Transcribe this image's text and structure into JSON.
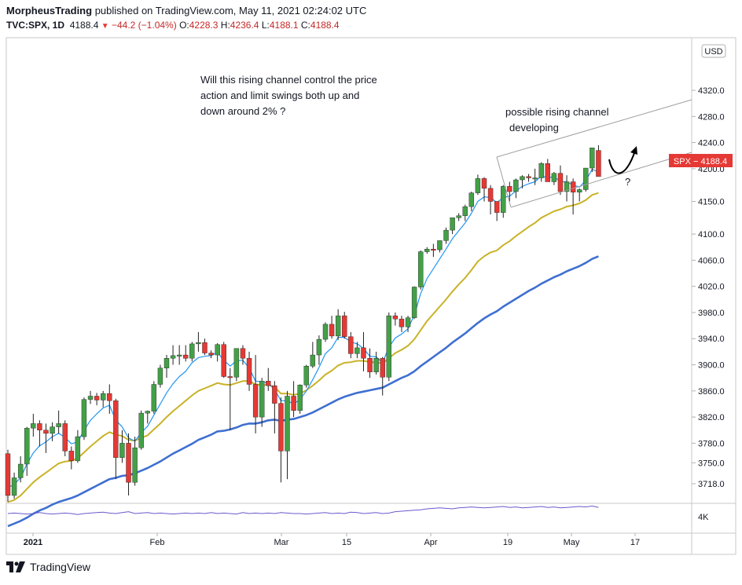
{
  "header": {
    "author": "MorpheusTrading",
    "published_text": "published on TradingView.com, May 11, 2021 02:24:02 UTC",
    "symbol": "TVC:SPX, 1D",
    "last": "4188.4",
    "change": "−44.2 (−1.04%)",
    "o_label": "O:",
    "o_value": "4228.3",
    "h_label": "H:",
    "h_value": "4236.4",
    "l_label": "L:",
    "l_value": "4188.1",
    "c_label": "C:",
    "c_value": "4188.4"
  },
  "footer": {
    "brand": "TradingView"
  },
  "colors": {
    "up": "#43a047",
    "down": "#e53935",
    "ema_fast": "#2196f3",
    "ema_mid": "#c9b227",
    "ema_slow": "#3f6fd1",
    "vol_line": "#6a5acd",
    "channel": "#9e9e9e",
    "price_tag": "#e53935",
    "axis_text": "#131722"
  },
  "chart_data": {
    "type": "candlestick",
    "currency_badge": "USD",
    "price_tag": "SPX − 4188.4",
    "y_ticks": [
      4320.0,
      4280.0,
      4240.0,
      4200.0,
      4150.0,
      4100.0,
      4060.0,
      4020.0,
      3980.0,
      3940.0,
      3900.0,
      3860.0,
      3820.0,
      3780.0,
      3750.0,
      3718.0
    ],
    "y_tick_labels": [
      "4320.0",
      "4280.0",
      "4240.0",
      "4200.0",
      "4150.0",
      "4100.0",
      "4060.0",
      "4020.0",
      "3980.0",
      "3940.0",
      "3900.0",
      "3860.0",
      "3820.0",
      "3780.0",
      "3750.0",
      "3718.0"
    ],
    "x_labels": [
      "2021",
      "Feb",
      "Mar",
      "15",
      "Apr",
      "19",
      "May",
      "17"
    ],
    "volume_label": "4K",
    "annotation_main": "Will this rising channel control the price action and limit swings both up and down around 2% ?",
    "annotation_main_lines": [
      "Will this rising channel control the price",
      "action and limit swings both up and",
      "down around 2% ?"
    ],
    "annotation_channel_lines": [
      "possible rising channel",
      "developing"
    ],
    "question_mark": "?",
    "candles": [
      [
        3764,
        3770,
        3690,
        3700
      ],
      [
        3700,
        3735,
        3695,
        3727
      ],
      [
        3727,
        3760,
        3720,
        3748
      ],
      [
        3748,
        3805,
        3730,
        3803
      ],
      [
        3803,
        3825,
        3790,
        3810
      ],
      [
        3810,
        3815,
        3775,
        3800
      ],
      [
        3800,
        3810,
        3765,
        3795
      ],
      [
        3795,
        3812,
        3783,
        3805
      ],
      [
        3805,
        3830,
        3795,
        3810
      ],
      [
        3810,
        3815,
        3760,
        3768
      ],
      [
        3768,
        3775,
        3740,
        3753
      ],
      [
        3753,
        3800,
        3750,
        3790
      ],
      [
        3790,
        3850,
        3785,
        3847
      ],
      [
        3847,
        3860,
        3840,
        3852
      ],
      [
        3852,
        3857,
        3838,
        3846
      ],
      [
        3846,
        3860,
        3835,
        3856
      ],
      [
        3856,
        3870,
        3825,
        3845
      ],
      [
        3845,
        3848,
        3725,
        3758
      ],
      [
        3758,
        3800,
        3750,
        3780
      ],
      [
        3780,
        3795,
        3700,
        3720
      ],
      [
        3720,
        3790,
        3715,
        3773
      ],
      [
        3773,
        3830,
        3770,
        3826
      ],
      [
        3826,
        3830,
        3810,
        3829
      ],
      [
        3829,
        3875,
        3825,
        3870
      ],
      [
        3870,
        3900,
        3865,
        3895
      ],
      [
        3895,
        3915,
        3880,
        3910
      ],
      [
        3910,
        3930,
        3900,
        3914
      ],
      [
        3914,
        3930,
        3900,
        3915
      ],
      [
        3915,
        3930,
        3905,
        3910
      ],
      [
        3910,
        3935,
        3905,
        3932
      ],
      [
        3932,
        3950,
        3920,
        3934
      ],
      [
        3934,
        3940,
        3915,
        3918
      ],
      [
        3918,
        3922,
        3910,
        3915
      ],
      [
        3915,
        3933,
        3905,
        3931
      ],
      [
        3931,
        3935,
        3880,
        3882
      ],
      [
        3882,
        3895,
        3800,
        3881
      ],
      [
        3881,
        3925,
        3875,
        3925
      ],
      [
        3925,
        3930,
        3900,
        3910
      ],
      [
        3910,
        3920,
        3860,
        3870
      ],
      [
        3870,
        3915,
        3795,
        3820
      ],
      [
        3820,
        3880,
        3805,
        3875
      ],
      [
        3875,
        3895,
        3860,
        3868
      ],
      [
        3868,
        3875,
        3795,
        3841
      ],
      [
        3841,
        3850,
        3720,
        3768
      ],
      [
        3768,
        3860,
        3725,
        3852
      ],
      [
        3852,
        3875,
        3820,
        3830
      ],
      [
        3830,
        3870,
        3825,
        3869
      ],
      [
        3869,
        3900,
        3865,
        3898
      ],
      [
        3898,
        3935,
        3895,
        3915
      ],
      [
        3915,
        3945,
        3900,
        3939
      ],
      [
        3939,
        3965,
        3935,
        3962
      ],
      [
        3962,
        3975,
        3940,
        3944
      ],
      [
        3944,
        3985,
        3938,
        3975
      ],
      [
        3975,
        3981,
        3940,
        3943
      ],
      [
        3943,
        3950,
        3910,
        3917
      ],
      [
        3917,
        3935,
        3910,
        3926
      ],
      [
        3926,
        3950,
        3890,
        3910
      ],
      [
        3910,
        3925,
        3880,
        3889
      ],
      [
        3889,
        3920,
        3885,
        3910
      ],
      [
        3910,
        3912,
        3853,
        3881
      ],
      [
        3881,
        3980,
        3875,
        3975
      ],
      [
        3975,
        3980,
        3960,
        3970
      ],
      [
        3970,
        3975,
        3950,
        3958
      ],
      [
        3958,
        3975,
        3950,
        3972
      ],
      [
        3972,
        4020,
        3970,
        4019
      ],
      [
        4019,
        4075,
        4015,
        4073
      ],
      [
        4073,
        4080,
        4070,
        4077
      ],
      [
        4077,
        4085,
        4065,
        4076
      ],
      [
        4076,
        4090,
        4072,
        4090
      ],
      [
        4090,
        4110,
        4085,
        4106
      ],
      [
        4106,
        4125,
        4100,
        4125
      ],
      [
        4125,
        4132,
        4120,
        4128
      ],
      [
        4128,
        4145,
        4120,
        4142
      ],
      [
        4142,
        4165,
        4135,
        4163
      ],
      [
        4163,
        4191,
        4160,
        4185
      ],
      [
        4185,
        4187,
        4150,
        4170
      ],
      [
        4170,
        4175,
        4130,
        4150
      ],
      [
        4150,
        4150,
        4120,
        4133
      ],
      [
        4133,
        4175,
        4125,
        4173
      ],
      [
        4173,
        4180,
        4150,
        4165
      ],
      [
        4165,
        4185,
        4155,
        4183
      ],
      [
        4183,
        4190,
        4170,
        4188
      ],
      [
        4188,
        4192,
        4180,
        4186
      ],
      [
        4186,
        4200,
        4175,
        4186
      ],
      [
        4186,
        4210,
        4180,
        4208
      ],
      [
        4208,
        4215,
        4180,
        4180
      ],
      [
        4180,
        4195,
        4175,
        4193
      ],
      [
        4193,
        4205,
        4160,
        4165
      ],
      [
        4165,
        4190,
        4150,
        4180
      ],
      [
        4180,
        4185,
        4130,
        4164
      ],
      [
        4164,
        4170,
        4150,
        4168
      ],
      [
        4168,
        4200,
        4165,
        4201
      ],
      [
        4201,
        4232,
        4195,
        4232
      ],
      [
        4228,
        4236,
        4188,
        4188
      ]
    ],
    "ema_fast": [
      3712,
      3717,
      3727,
      3748,
      3765,
      3776,
      3782,
      3790,
      3795,
      3789,
      3779,
      3782,
      3800,
      3815,
      3825,
      3834,
      3838,
      3815,
      3805,
      3788,
      3783,
      3796,
      3806,
      3823,
      3840,
      3857,
      3871,
      3882,
      3890,
      3903,
      3911,
      3913,
      3914,
      3919,
      3907,
      3898,
      3906,
      3907,
      3895,
      3875,
      3874,
      3872,
      3862,
      3845,
      3845,
      3840,
      3847,
      3860,
      3877,
      3896,
      3917,
      3926,
      3942,
      3942,
      3935,
      3932,
      3925,
      3913,
      3912,
      3903,
      3927,
      3941,
      3947,
      3955,
      3976,
      4009,
      4032,
      4047,
      4062,
      4077,
      4093,
      4105,
      4117,
      4132,
      4150,
      4157,
      4156,
      4148,
      4156,
      4158,
      4166,
      4173,
      4177,
      4180,
      4189,
      4186,
      4188,
      4180,
      4180,
      4175,
      4172,
      4182,
      4199,
      4195
    ],
    "ema_mid": [
      3690,
      3693,
      3700,
      3710,
      3720,
      3728,
      3735,
      3742,
      3749,
      3752,
      3753,
      3757,
      3766,
      3775,
      3783,
      3791,
      3797,
      3793,
      3791,
      3785,
      3784,
      3788,
      3792,
      3801,
      3810,
      3820,
      3829,
      3837,
      3845,
      3853,
      3860,
      3864,
      3868,
      3872,
      3870,
      3869,
      3872,
      3875,
      3875,
      3870,
      3869,
      3869,
      3866,
      3856,
      3856,
      3854,
      3856,
      3861,
      3868,
      3876,
      3885,
      3891,
      3899,
      3903,
      3904,
      3906,
      3906,
      3904,
      3904,
      3902,
      3910,
      3918,
      3923,
      3929,
      3939,
      3953,
      3967,
      3978,
      3989,
      4000,
      4012,
      4023,
      4033,
      4045,
      4058,
      4066,
      4072,
      4075,
      4083,
      4089,
      4097,
      4104,
      4111,
      4117,
      4125,
      4130,
      4135,
      4138,
      4142,
      4144,
      4147,
      4152,
      4160,
      4163
    ],
    "ema_slow": [
      3653,
      3657,
      3661,
      3666,
      3672,
      3677,
      3681,
      3686,
      3690,
      3693,
      3696,
      3700,
      3705,
      3710,
      3715,
      3720,
      3725,
      3727,
      3730,
      3731,
      3734,
      3738,
      3742,
      3747,
      3752,
      3758,
      3764,
      3769,
      3774,
      3779,
      3785,
      3789,
      3793,
      3798,
      3799,
      3801,
      3804,
      3808,
      3810,
      3810,
      3812,
      3815,
      3816,
      3814,
      3816,
      3817,
      3820,
      3823,
      3827,
      3832,
      3837,
      3842,
      3847,
      3851,
      3854,
      3857,
      3859,
      3861,
      3863,
      3865,
      3870,
      3875,
      3880,
      3884,
      3890,
      3898,
      3905,
      3912,
      3919,
      3926,
      3934,
      3941,
      3948,
      3956,
      3964,
      3971,
      3977,
      3982,
      3989,
      3995,
      4001,
      4007,
      4013,
      4018,
      4024,
      4029,
      4034,
      4038,
      4043,
      4047,
      4051,
      4056,
      4062,
      4066
    ],
    "volume_line": [
      30,
      31,
      30,
      29,
      30,
      32,
      30,
      29,
      30,
      31,
      30,
      28,
      30,
      31,
      32,
      33,
      31,
      30,
      32,
      34,
      30,
      31,
      32,
      30,
      31,
      30,
      29,
      30,
      31,
      30,
      31,
      30,
      32,
      30,
      31,
      30,
      29,
      32,
      30,
      31,
      30,
      31,
      30,
      32,
      31,
      30,
      30,
      29,
      30,
      31,
      32,
      30,
      31,
      30,
      33,
      32,
      30,
      31,
      32,
      30,
      31,
      34,
      35,
      36,
      37,
      38,
      40,
      41,
      42,
      41,
      40,
      42,
      43,
      44,
      43,
      42,
      43,
      44,
      45,
      43,
      44,
      42,
      43,
      44,
      45,
      43,
      44,
      42,
      43,
      44,
      45,
      44,
      46,
      43
    ]
  }
}
